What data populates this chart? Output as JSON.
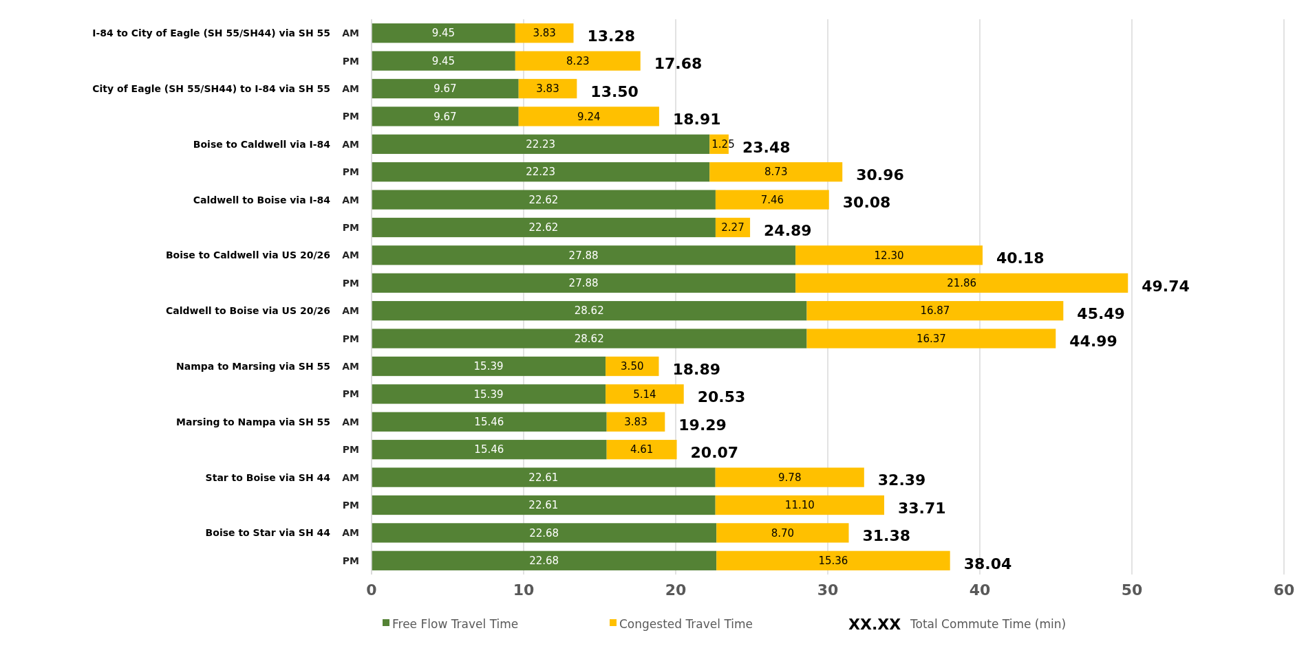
{
  "chart_data": {
    "type": "bar",
    "orientation": "horizontal",
    "stacked": true,
    "categories": [
      "AM",
      "PM",
      "AM",
      "PM",
      "AM",
      "PM",
      "AM",
      "PM",
      "AM",
      "PM",
      "AM",
      "PM",
      "AM",
      "PM",
      "AM",
      "PM",
      "AM",
      "PM",
      "AM",
      "PM"
    ],
    "series": [
      {
        "name": "Free Flow Travel Time",
        "color": "#548235",
        "values": [
          9.45,
          9.45,
          9.67,
          9.67,
          22.23,
          22.23,
          22.62,
          22.62,
          27.88,
          27.88,
          28.62,
          28.62,
          15.39,
          15.39,
          15.46,
          15.46,
          22.61,
          22.61,
          22.68,
          22.68
        ],
        "value_labels": [
          "9.45",
          "9.45",
          "9.67",
          "9.67",
          "22.23",
          "22.23",
          "22.62",
          "22.62",
          "27.88",
          "27.88",
          "28.62",
          "28.62",
          "15.39",
          "15.39",
          "15.46",
          "15.46",
          "22.61",
          "22.61",
          "22.68",
          "22.68"
        ]
      },
      {
        "name": "Congested Travel Time",
        "color": "#ffc000",
        "values": [
          3.83,
          8.23,
          3.83,
          9.24,
          1.25,
          8.73,
          7.46,
          2.27,
          12.3,
          21.86,
          16.87,
          16.37,
          3.5,
          5.14,
          3.83,
          4.61,
          9.78,
          11.1,
          8.7,
          15.36
        ],
        "value_labels": [
          "3.83",
          "8.23",
          "3.83",
          "9.24",
          "1.25",
          "8.73",
          "7.46",
          "2.27",
          "12.30",
          "21.86",
          "16.87",
          "16.37",
          "3.50",
          "5.14",
          "3.83",
          "4.61",
          "9.78",
          "11.10",
          "8.70",
          "15.36"
        ]
      }
    ],
    "totals": [
      "13.28",
      "17.68",
      "13.50",
      "18.91",
      "23.48",
      "30.96",
      "30.08",
      "24.89",
      "40.18",
      "49.74",
      "45.49",
      "44.99",
      "18.89",
      "20.53",
      "19.29",
      "20.07",
      "32.39",
      "33.71",
      "31.38",
      "38.04"
    ],
    "annotations": [
      "I-84 to City of Eagle (SH 55/SH44) via SH 55",
      "City of Eagle (SH 55/SH44) to I-84 via SH 55",
      "Boise to Caldwell via I-84",
      "Caldwell to Boise via I-84",
      "Boise to Caldwell via US 20/26",
      "Caldwell to Boise via US 20/26",
      "Nampa to Marsing via SH 55",
      "Marsing to Nampa via SH 55",
      "Star to Boise via SH 44",
      "Boise to Star via SH 44",
      "XX.XX",
      "Total Commute Time (min)"
    ],
    "xlim": [
      0,
      60
    ],
    "xticks": [
      0,
      10,
      20,
      30,
      40,
      50,
      60
    ],
    "grid": "x",
    "legend": "bottom"
  }
}
